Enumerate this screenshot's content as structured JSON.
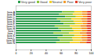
{
  "chart_data": {
    "type": "bar",
    "orientation": "horizontal",
    "stacked": true,
    "legend": "top-right",
    "grid": false,
    "categories": [
      "Item A",
      "Item B",
      "Item C",
      "Item D",
      "Item E",
      "Item F",
      "Item G",
      "Item H",
      "Item I",
      "Item J",
      "Item K",
      "Item L",
      "Item M",
      "Item N"
    ],
    "xlim": [
      0,
      100
    ],
    "xticks": [
      0,
      20,
      40,
      60,
      80,
      100
    ],
    "series": [
      {
        "name": "Very good",
        "color": "#2e9e4f",
        "values": [
          62,
          58,
          66,
          55,
          60,
          64,
          52,
          57,
          61,
          50,
          63,
          56,
          59,
          54
        ]
      },
      {
        "name": "Good",
        "color": "#8cc63f",
        "values": [
          16,
          18,
          14,
          19,
          17,
          15,
          20,
          18,
          16,
          21,
          15,
          19,
          17,
          18
        ]
      },
      {
        "name": "Neutral",
        "color": "#f2d230",
        "values": [
          10,
          12,
          9,
          13,
          11,
          10,
          14,
          12,
          11,
          14,
          10,
          12,
          12,
          13
        ]
      },
      {
        "name": "Poor",
        "color": "#f29b30",
        "values": [
          7,
          7,
          6,
          8,
          7,
          6,
          8,
          8,
          7,
          9,
          7,
          8,
          7,
          9
        ]
      },
      {
        "name": "Very poor",
        "color": "#e0402e",
        "values": [
          5,
          5,
          5,
          5,
          5,
          5,
          6,
          5,
          5,
          6,
          5,
          5,
          5,
          6
        ]
      }
    ]
  }
}
